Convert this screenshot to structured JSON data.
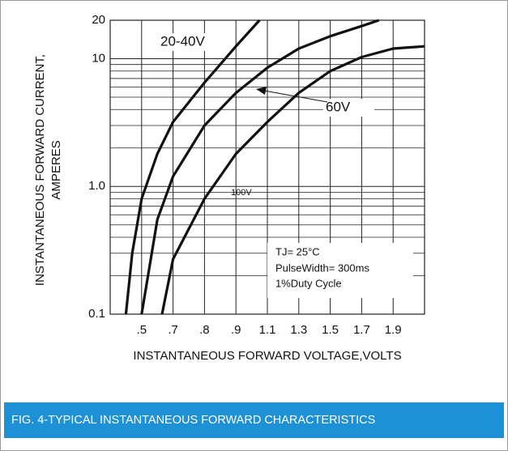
{
  "chart_data": {
    "type": "line",
    "title": "FIG. 4-TYPICAL INSTANTANEOUS FORWARD CHARACTERISTICS",
    "x_label": "INSTANTANEOUS FORWARD VOLTAGE,VOLTS",
    "y_label": [
      "INSTANTANEOUS FORWARD CURRENT,",
      "AMPERES"
    ],
    "y_log": true,
    "grid": true,
    "xlim": [
      0.4,
      2.0
    ],
    "xticks": [
      {
        "value": 0.5,
        "label": ".5"
      },
      {
        "value": 0.7,
        "label": ".7"
      },
      {
        "value": 0.8,
        "label": ".8"
      },
      {
        "value": 0.9,
        "label": ".9"
      },
      1.1,
      1.3,
      1.5,
      1.7,
      1.9
    ],
    "ylim": [
      0.1,
      20
    ],
    "yticks": [
      0.1,
      {
        "value": 1,
        "label": "1.0"
      },
      10,
      20
    ],
    "minor_yticks": [
      0.2,
      0.3,
      0.4,
      0.5,
      0.6,
      0.7,
      0.8,
      0.9,
      2,
      3,
      4,
      5,
      6,
      7,
      8,
      9
    ],
    "series": [
      {
        "name": "20-40V",
        "color": "#111111",
        "x": [
          0.45,
          0.47,
          0.5,
          0.6,
          0.7,
          0.8,
          0.9,
          1.05
        ],
        "values": [
          0.1,
          0.3,
          0.8,
          1.8,
          3.2,
          6.5,
          12.5,
          20
        ]
      },
      {
        "name": "60V",
        "color": "#111111",
        "x": [
          0.5,
          0.6,
          0.7,
          0.8,
          0.9,
          1.1,
          1.3,
          1.5,
          1.7,
          1.81
        ],
        "values": [
          0.1,
          0.55,
          1.2,
          3,
          5.4,
          8.5,
          12,
          15,
          18,
          20
        ]
      },
      {
        "name": "100V",
        "color": "#111111",
        "x": [
          0.63,
          0.7,
          0.8,
          0.9,
          1.1,
          1.3,
          1.5,
          1.7,
          1.9,
          2.0
        ],
        "values": [
          0.1,
          0.27,
          0.8,
          1.8,
          3.2,
          5.4,
          8,
          10.3,
          12,
          12.5
        ]
      }
    ],
    "notes": [
      "TJ= 25°C",
      "PulseWidth= 300ms",
      "1%Duty Cycle"
    ],
    "footer_color": "#1e90d6"
  }
}
